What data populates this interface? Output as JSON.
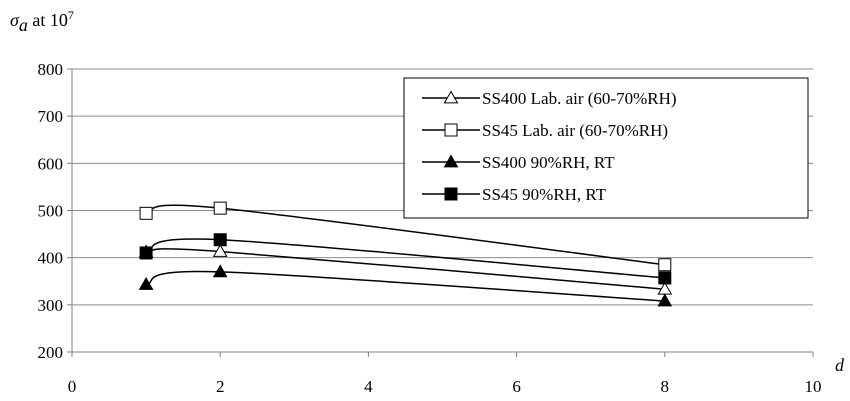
{
  "chart_data": {
    "type": "line",
    "title": "",
    "ylabel": {
      "symbol": "σ",
      "subscript": "a",
      "text": " at 10",
      "superscript": "7"
    },
    "xlabel": "d",
    "xlim": [
      0,
      10
    ],
    "ylim": [
      200,
      800
    ],
    "x_ticks": [
      0,
      2,
      4,
      6,
      8,
      10
    ],
    "y_ticks": [
      200,
      300,
      400,
      500,
      600,
      700,
      800
    ],
    "grid": "horizontal",
    "legend_position": "top-right",
    "series": [
      {
        "name": "SS400 Lab. air (60-70%RH)",
        "marker": "triangle-open",
        "x": [
          1,
          2,
          8
        ],
        "y": [
          412,
          413,
          333
        ]
      },
      {
        "name": "SS45 Lab. air (60-70%RH)",
        "marker": "square-open",
        "x": [
          1,
          2,
          8
        ],
        "y": [
          494,
          505,
          385
        ]
      },
      {
        "name": "SS400 90%RH, RT",
        "marker": "triangle-filled",
        "x": [
          1,
          2,
          8
        ],
        "y": [
          343,
          370,
          308
        ]
      },
      {
        "name": "SS45 90%RH, RT",
        "marker": "square-filled",
        "x": [
          1,
          2,
          8
        ],
        "y": [
          410,
          438,
          357
        ]
      }
    ]
  }
}
